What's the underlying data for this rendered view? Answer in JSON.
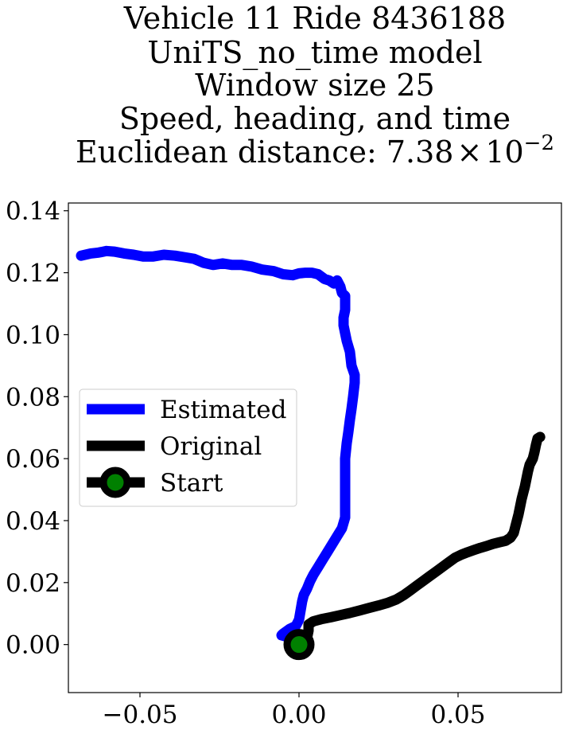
{
  "chart_data": {
    "type": "line",
    "title_lines": [
      "Vehicle 11 Ride 8436188",
      "UniTS_no_time model",
      "Window size 25",
      "Speed, heading, and time",
      "Euclidean distance: "
    ],
    "title_math": {
      "mantissa": "7.38",
      "times": "×",
      "base": "10",
      "exponent": "−2"
    },
    "xlabel": "",
    "ylabel": "",
    "xlim": [
      -0.0725,
      0.0825
    ],
    "ylim": [
      -0.0155,
      0.1425
    ],
    "xticks": [
      {
        "value": -0.05,
        "label": "−0.05"
      },
      {
        "value": 0.0,
        "label": "0.00"
      },
      {
        "value": 0.05,
        "label": "0.05"
      }
    ],
    "yticks": [
      {
        "value": 0.0,
        "label": "0.00"
      },
      {
        "value": 0.02,
        "label": "0.02"
      },
      {
        "value": 0.04,
        "label": "0.04"
      },
      {
        "value": 0.06,
        "label": "0.06"
      },
      {
        "value": 0.08,
        "label": "0.08"
      },
      {
        "value": 0.1,
        "label": "0.10"
      },
      {
        "value": 0.12,
        "label": "0.12"
      },
      {
        "value": 0.14,
        "label": "0.14"
      }
    ],
    "grid": false,
    "legend_position": "center-left",
    "series": [
      {
        "name": "Estimated",
        "color": "#0000ff",
        "points": [
          [
            0.0,
            0.0
          ],
          [
            -0.0005,
            0.0015
          ],
          [
            -0.002,
            0.002
          ],
          [
            -0.0055,
            0.003
          ],
          [
            -0.005,
            0.0035
          ],
          [
            -0.003,
            0.005
          ],
          [
            -0.001,
            0.006
          ],
          [
            0.0,
            0.008
          ],
          [
            0.0005,
            0.011
          ],
          [
            0.001,
            0.014
          ],
          [
            0.0015,
            0.016
          ],
          [
            0.0025,
            0.018
          ],
          [
            0.0035,
            0.0205
          ],
          [
            0.0045,
            0.0225
          ],
          [
            0.006,
            0.025
          ],
          [
            0.0075,
            0.0275
          ],
          [
            0.009,
            0.03
          ],
          [
            0.0105,
            0.0325
          ],
          [
            0.012,
            0.035
          ],
          [
            0.0135,
            0.0375
          ],
          [
            0.0145,
            0.041
          ],
          [
            0.0145,
            0.045
          ],
          [
            0.0145,
            0.05
          ],
          [
            0.0145,
            0.055
          ],
          [
            0.0145,
            0.06
          ],
          [
            0.015,
            0.065
          ],
          [
            0.0155,
            0.0685
          ],
          [
            0.016,
            0.0725
          ],
          [
            0.0165,
            0.076
          ],
          [
            0.017,
            0.08
          ],
          [
            0.0175,
            0.0845
          ],
          [
            0.0175,
            0.087
          ],
          [
            0.0165,
            0.09
          ],
          [
            0.016,
            0.0945
          ],
          [
            0.015,
            0.098
          ],
          [
            0.0145,
            0.1005
          ],
          [
            0.014,
            0.103
          ],
          [
            0.014,
            0.1055
          ],
          [
            0.0145,
            0.108
          ],
          [
            0.0145,
            0.111
          ],
          [
            0.0145,
            0.1125
          ],
          [
            0.0135,
            0.1135
          ],
          [
            0.013,
            0.1155
          ],
          [
            0.012,
            0.1175
          ],
          [
            0.011,
            0.1165
          ],
          [
            0.0095,
            0.1175
          ],
          [
            0.008,
            0.118
          ],
          [
            0.006,
            0.1195
          ],
          [
            0.004,
            0.12
          ],
          [
            0.002,
            0.12
          ],
          [
            0.0,
            0.1198
          ],
          [
            -0.002,
            0.1192
          ],
          [
            -0.005,
            0.1195
          ],
          [
            -0.008,
            0.1205
          ],
          [
            -0.0115,
            0.121
          ],
          [
            -0.015,
            0.122
          ],
          [
            -0.018,
            0.1225
          ],
          [
            -0.021,
            0.1225
          ],
          [
            -0.024,
            0.123
          ],
          [
            -0.027,
            0.1225
          ],
          [
            -0.03,
            0.1232
          ],
          [
            -0.033,
            0.1245
          ],
          [
            -0.036,
            0.125
          ],
          [
            -0.039,
            0.1255
          ],
          [
            -0.0425,
            0.1258
          ],
          [
            -0.046,
            0.1252
          ],
          [
            -0.049,
            0.1252
          ],
          [
            -0.052,
            0.1258
          ],
          [
            -0.055,
            0.1262
          ],
          [
            -0.058,
            0.1268
          ],
          [
            -0.0605,
            0.127
          ],
          [
            -0.063,
            0.1265
          ],
          [
            -0.0655,
            0.1262
          ],
          [
            -0.0685,
            0.1255
          ]
        ]
      },
      {
        "name": "Original",
        "color": "#000000",
        "points": [
          [
            0.0,
            0.0
          ],
          [
            0.0025,
            0.002
          ],
          [
            0.003,
            0.0045
          ],
          [
            0.003,
            0.0065
          ],
          [
            0.0045,
            0.0075
          ],
          [
            0.007,
            0.0082
          ],
          [
            0.01,
            0.0088
          ],
          [
            0.013,
            0.0095
          ],
          [
            0.016,
            0.0102
          ],
          [
            0.019,
            0.011
          ],
          [
            0.022,
            0.0118
          ],
          [
            0.025,
            0.0126
          ],
          [
            0.028,
            0.0135
          ],
          [
            0.0305,
            0.0145
          ],
          [
            0.033,
            0.016
          ],
          [
            0.035,
            0.0175
          ],
          [
            0.037,
            0.019
          ],
          [
            0.039,
            0.0205
          ],
          [
            0.041,
            0.022
          ],
          [
            0.043,
            0.0235
          ],
          [
            0.045,
            0.025
          ],
          [
            0.047,
            0.0265
          ],
          [
            0.049,
            0.028
          ],
          [
            0.051,
            0.029
          ],
          [
            0.053,
            0.0298
          ],
          [
            0.055,
            0.0305
          ],
          [
            0.057,
            0.0312
          ],
          [
            0.059,
            0.0318
          ],
          [
            0.061,
            0.0325
          ],
          [
            0.063,
            0.033
          ],
          [
            0.065,
            0.0335
          ],
          [
            0.0665,
            0.0345
          ],
          [
            0.0675,
            0.036
          ],
          [
            0.068,
            0.038
          ],
          [
            0.0685,
            0.04
          ],
          [
            0.069,
            0.042
          ],
          [
            0.0695,
            0.0445
          ],
          [
            0.07,
            0.047
          ],
          [
            0.0705,
            0.049
          ],
          [
            0.071,
            0.051
          ],
          [
            0.0715,
            0.0535
          ],
          [
            0.072,
            0.056
          ],
          [
            0.0725,
            0.058
          ],
          [
            0.0735,
            0.06
          ],
          [
            0.074,
            0.062
          ],
          [
            0.0745,
            0.0645
          ],
          [
            0.075,
            0.0665
          ],
          [
            0.0758,
            0.067
          ]
        ]
      },
      {
        "name": "Start",
        "color": "#000000",
        "marker_color": "#008000",
        "points": [
          [
            0.0,
            0.0
          ]
        ]
      }
    ]
  }
}
